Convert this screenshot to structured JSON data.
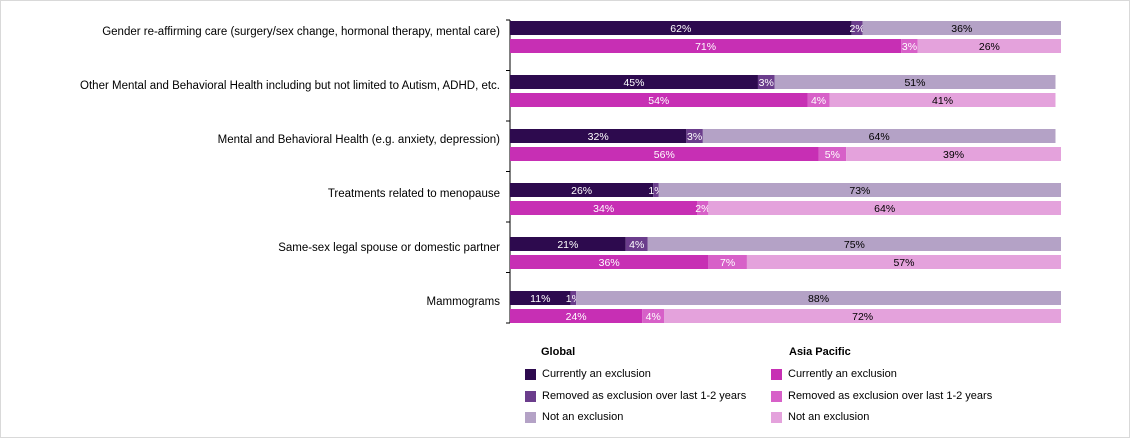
{
  "chart_data": {
    "type": "bar",
    "orientation": "horizontal",
    "stacked": true,
    "normalized": true,
    "categories": [
      "Gender re-affirming care (surgery/sex change, hormonal therapy, mental care)",
      "Other Mental and Behavioral Health including but not limited to Autism, ADHD, etc.",
      "Mental and Behavioral Health (e.g. anxiety, depression)",
      "Treatments related to menopause",
      "Same-sex legal spouse or domestic partner",
      "Mammograms"
    ],
    "groups": [
      {
        "name": "Global",
        "series": [
          {
            "name": "Currently an exclusion",
            "color": "#2d0a4e",
            "values": [
              62,
              45,
              32,
              26,
              21,
              11
            ]
          },
          {
            "name": "Removed as exclusion over last 1-2 years",
            "color": "#6b3d8c",
            "values": [
              2,
              3,
              3,
              1,
              4,
              1
            ]
          },
          {
            "name": "Not an exclusion",
            "color": "#b4a2c6",
            "values": [
              36,
              51,
              64,
              73,
              75,
              88
            ]
          }
        ]
      },
      {
        "name": "Asia Pacific",
        "series": [
          {
            "name": "Currently an exclusion",
            "color": "#c72fb4",
            "values": [
              71,
              54,
              56,
              34,
              36,
              24
            ]
          },
          {
            "name": "Removed as exclusion over last 1-2 years",
            "color": "#d760c8",
            "values": [
              3,
              4,
              5,
              2,
              7,
              4
            ]
          },
          {
            "name": "Not an exclusion",
            "color": "#e4a2dc",
            "values": [
              26,
              41,
              39,
              64,
              57,
              72
            ]
          }
        ]
      }
    ],
    "xlim": [
      0,
      100
    ],
    "title": "",
    "xlabel": "",
    "ylabel": "",
    "grid": false
  },
  "legend": {
    "global_title": "Global",
    "apac_title": "Asia Pacific",
    "global_items": [
      "Currently an exclusion",
      "Removed as exclusion over last 1-2 years",
      "Not an exclusion"
    ],
    "apac_items": [
      "Currently an exclusion",
      "Removed as exclusion over last 1-2 years",
      "Not an exclusion"
    ],
    "global_colors": [
      "#2d0a4e",
      "#6b3d8c",
      "#b4a2c6"
    ],
    "apac_colors": [
      "#c72fb4",
      "#d760c8",
      "#e4a2dc"
    ]
  }
}
